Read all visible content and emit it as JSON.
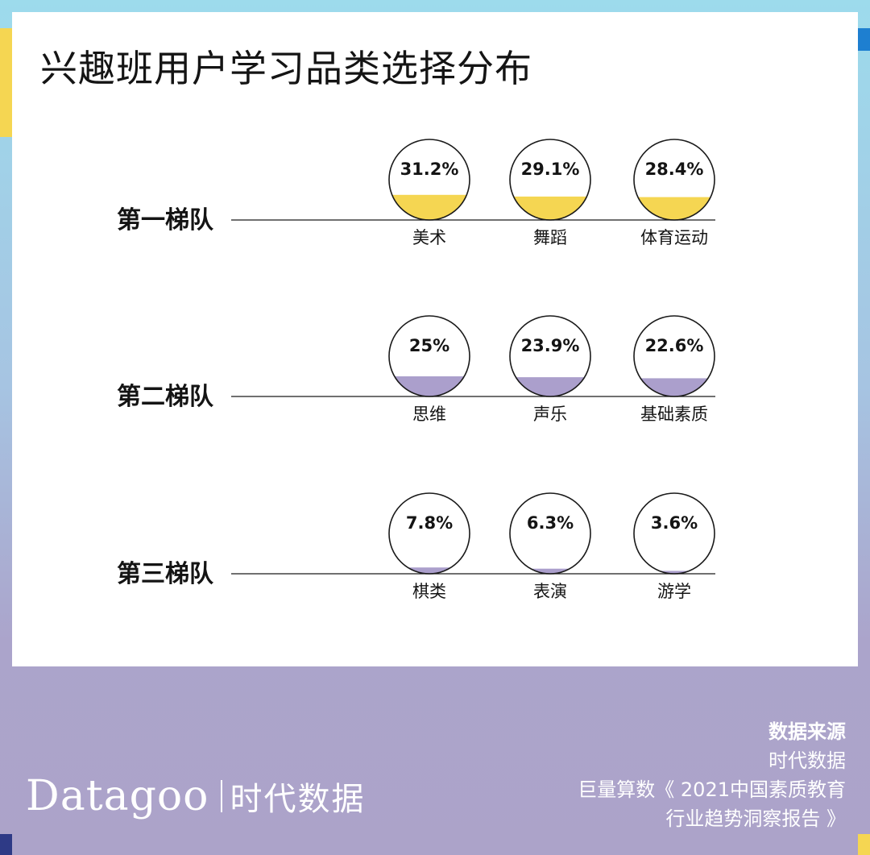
{
  "header": {
    "title": "兴趣班用户学习品类选择分布"
  },
  "chart_data": {
    "type": "bubble-fill",
    "title": "兴趣班用户学习品类选择分布",
    "unit": "%",
    "tiers": [
      {
        "name": "第一梯队",
        "color": "#f5d652",
        "items": [
          {
            "label": "美术",
            "value": 31.2,
            "value_label": "31.2%"
          },
          {
            "label": "舞蹈",
            "value": 29.1,
            "value_label": "29.1%"
          },
          {
            "label": "体育运动",
            "value": 28.4,
            "value_label": "28.4%"
          }
        ]
      },
      {
        "name": "第二梯队",
        "color": "#ab9fcc",
        "items": [
          {
            "label": "思维",
            "value": 25,
            "value_label": "25%"
          },
          {
            "label": "声乐",
            "value": 23.9,
            "value_label": "23.9%"
          },
          {
            "label": "基础素质",
            "value": 22.6,
            "value_label": "22.6%"
          }
        ]
      },
      {
        "name": "第三梯队",
        "color": "#ab9fcc",
        "items": [
          {
            "label": "棋类",
            "value": 7.8,
            "value_label": "7.8%"
          },
          {
            "label": "表演",
            "value": 6.3,
            "value_label": "6.3%"
          },
          {
            "label": "游学",
            "value": 3.6,
            "value_label": "3.6%"
          }
        ]
      }
    ]
  },
  "footer": {
    "brand_en": "Datagoo",
    "brand_cn": "时代数据",
    "source_title": "数据来源",
    "source_lines": [
      "时代数据",
      "巨量算数《 2021中国素质教育",
      "行业趋势洞察报告 》"
    ]
  },
  "colors": {
    "yellow_accent": "#f5d652",
    "purple_accent": "#ab9fcc",
    "dark_blue_accent": "#2e3a86",
    "top_blue_accent": "#1e7fd0"
  }
}
